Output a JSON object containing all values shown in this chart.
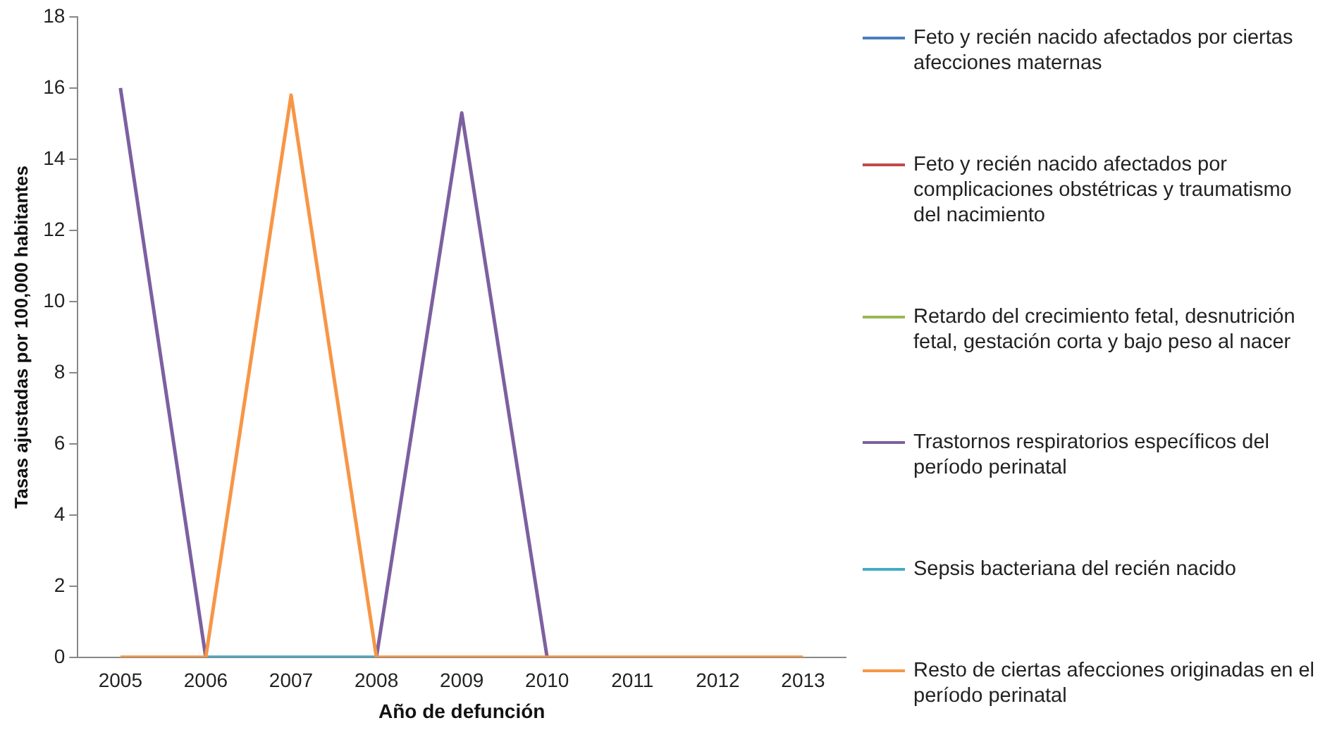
{
  "chart_data": {
    "type": "line",
    "xlabel": "Año de defunción",
    "ylabel": "Tasas ajustadas por 100,000 habitantes",
    "categories": [
      "2005",
      "2006",
      "2007",
      "2008",
      "2009",
      "2010",
      "2011",
      "2012",
      "2013"
    ],
    "ylim": [
      0,
      18
    ],
    "yticks": [
      0,
      2,
      4,
      6,
      8,
      10,
      12,
      14,
      16,
      18
    ],
    "grid": false,
    "legend": "right",
    "marker": "none",
    "line_style": "solid",
    "series": [
      {
        "name": "Feto y recién nacido afectados por ciertas afecciones maternas",
        "color": "#4a7ebb",
        "values": [
          null,
          null,
          null,
          null,
          null,
          null,
          null,
          null,
          null
        ]
      },
      {
        "name": "Feto y recién nacido afectados por complicaciones obstétricas y traumatismo del nacimiento",
        "color": "#be4b48",
        "values": [
          null,
          null,
          null,
          null,
          null,
          null,
          null,
          null,
          null
        ]
      },
      {
        "name": "Retardo del crecimiento fetal, desnutrición fetal, gestación corta y bajo peso al nacer",
        "color": "#98b954",
        "values": [
          null,
          null,
          null,
          null,
          null,
          null,
          null,
          null,
          null
        ]
      },
      {
        "name": "Trastornos respiratorios específicos del período perinatal",
        "color": "#7d60a0",
        "values": [
          16,
          0,
          null,
          0,
          15.3,
          0,
          null,
          null,
          null
        ]
      },
      {
        "name": "Sepsis bacteriana del recién nacido",
        "color": "#46aac5",
        "values": [
          null,
          0,
          0,
          0,
          null,
          null,
          null,
          null,
          null
        ]
      },
      {
        "name": "Resto de ciertas afecciones originadas en el período perinatal",
        "color": "#f79646",
        "values": [
          0,
          0,
          15.8,
          0,
          0,
          0,
          0,
          0,
          0
        ]
      }
    ]
  }
}
